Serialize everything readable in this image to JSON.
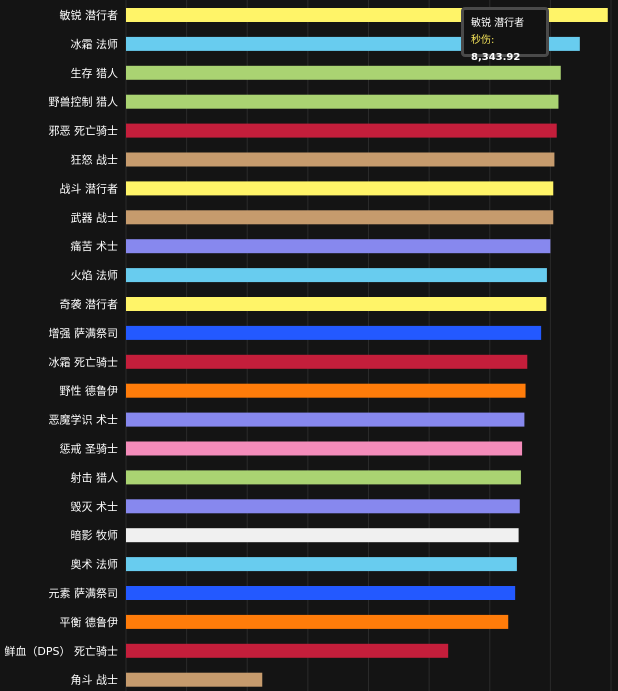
{
  "chart_data": {
    "type": "bar",
    "orientation": "horizontal",
    "categories": [
      "敏锐 潜行者",
      "冰霜 法师",
      "生存 猎人",
      "野兽控制 猎人",
      "邪恶 死亡骑士",
      "狂怒 战士",
      "战斗 潜行者",
      "武器 战士",
      "痛苦 术士",
      "火焰 法师",
      "奇袭 潜行者",
      "增强 萨满祭司",
      "冰霜 死亡骑士",
      "野性 德鲁伊",
      "恶魔学识 术士",
      "惩戒 圣骑士",
      "射击 猎人",
      "毁灭 术士",
      "暗影 牧师",
      "奥术 法师",
      "元素 萨满祭司",
      "平衡 德鲁伊",
      "鲜血（DPS） 死亡骑士",
      "角斗 战士"
    ],
    "values": [
      8343.92,
      7860,
      7530,
      7490,
      7460,
      7420,
      7400,
      7400,
      7350,
      7290,
      7280,
      7190,
      6950,
      6920,
      6900,
      6860,
      6840,
      6820,
      6800,
      6770,
      6740,
      6620,
      5580,
      2360
    ],
    "colors": [
      "#fff468",
      "#68ccef",
      "#aad372",
      "#aad372",
      "#c41e3b",
      "#c69b6d",
      "#fff468",
      "#c69b6d",
      "#8788ee",
      "#68ccef",
      "#fff468",
      "#2359ff",
      "#c41e3b",
      "#ff7c0a",
      "#8788ee",
      "#f48cba",
      "#aad372",
      "#8788ee",
      "#f0f0f0",
      "#68ccef",
      "#2359ff",
      "#ff7c0a",
      "#c41e3b",
      "#c69b6d"
    ],
    "xlim": [
      0,
      8400
    ],
    "grid": true,
    "tooltip": {
      "title": "敏锐 潜行者",
      "key": "秒伤:",
      "value": "8,343.92"
    }
  }
}
